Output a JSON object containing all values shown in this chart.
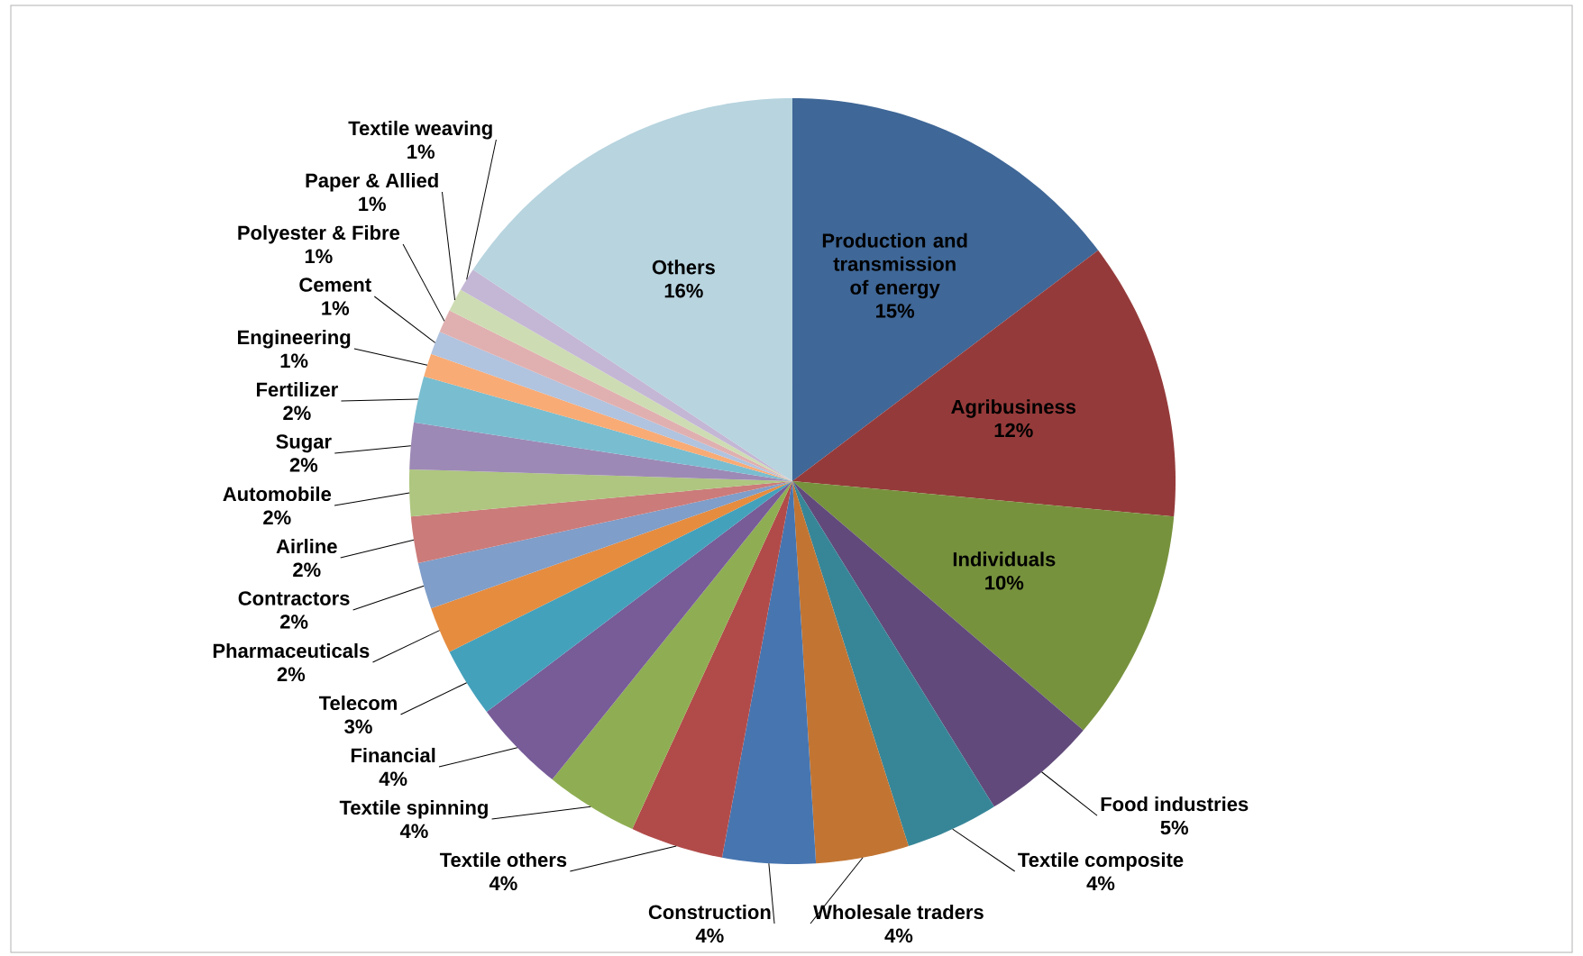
{
  "chart_data": {
    "type": "pie",
    "categories": [
      "Production and transmission of energy",
      "Agribusiness",
      "Individuals",
      "Food industries",
      "Textile composite",
      "Wholesale traders",
      "Construction",
      "Textile others",
      "Textile spinning",
      "Financial",
      "Telecom",
      "Pharmaceuticals",
      "Contractors",
      "Airline",
      "Automobile",
      "Sugar",
      "Fertilizer",
      "Engineering",
      "Cement",
      "Polyester & Fibre",
      "Paper & Allied",
      "Textile  weaving",
      "Others"
    ],
    "values": [
      15,
      12,
      10,
      5,
      4,
      4,
      4,
      4,
      4,
      4,
      3,
      2,
      2,
      2,
      2,
      2,
      2,
      1,
      1,
      1,
      1,
      1,
      16
    ],
    "value_labels": [
      "15%",
      "12%",
      "10%",
      "5%",
      "4%",
      "4%",
      "4%",
      "4%",
      "4%",
      "4%",
      "3%",
      "2%",
      "2%",
      "2%",
      "2%",
      "2%",
      "2%",
      "1%",
      "1%",
      "1%",
      "1%",
      "1%",
      "16%"
    ],
    "colors": [
      "#3f6797",
      "#953a3a",
      "#77923d",
      "#614a7b",
      "#378698",
      "#c27533",
      "#4775b0",
      "#b14b49",
      "#8fae53",
      "#775c98",
      "#44a1bc",
      "#e68c3f",
      "#7f9ec9",
      "#cb7b7a",
      "#aec67f",
      "#9d89b5",
      "#79bdd0",
      "#f9ab75",
      "#b0c3df",
      "#e0b0b0",
      "#cedcb3",
      "#c4b7d5",
      "#b7d4df"
    ]
  }
}
